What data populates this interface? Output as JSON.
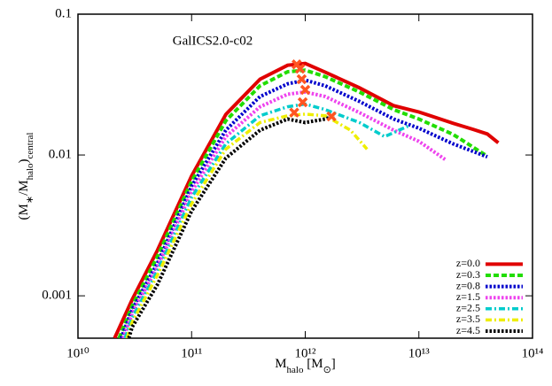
{
  "chart_data": {
    "type": "line",
    "annotation": "GalICS2.0-c02",
    "xlabel": [
      "M",
      "halo",
      " [M",
      "⊙",
      "]"
    ],
    "ylabel": [
      "(M",
      "∗",
      "/M",
      "halo",
      ")",
      "central"
    ],
    "xlog": true,
    "ylog": true,
    "legend": "bottom-right",
    "xlim": [
      10000000000.0,
      100000000000000.0
    ],
    "xticks": [
      {
        "value": 10000000000.0,
        "label": "10¹⁰"
      },
      {
        "value": 100000000000.0,
        "label": "10¹¹"
      },
      {
        "value": 1000000000000.0,
        "label": "10¹²"
      },
      {
        "value": 10000000000000.0,
        "label": "10¹³"
      },
      {
        "value": 100000000000000.0,
        "label": "10¹⁴"
      }
    ],
    "ylim": [
      0.0005,
      0.1
    ],
    "yticks": [
      0.001,
      0.01,
      0.1
    ],
    "peak_color": "#ff5522",
    "series": [
      {
        "name": "z=0.0",
        "color": "#e00000",
        "style": "solid",
        "x": [
          21000000000.0,
          30000000000.0,
          50000000000.0,
          100000000000.0,
          200000000000.0,
          400000000000.0,
          700000000000.0,
          1000000000000.0,
          1500000000000.0,
          3000000000000.0,
          6000000000000.0,
          10000000000000.0,
          20000000000000.0,
          30000000000000.0,
          40000000000000.0,
          50000000000000.0
        ],
        "values": [
          0.0005,
          0.00094,
          0.0021,
          0.0071,
          0.0194,
          0.0345,
          0.0434,
          0.0447,
          0.0387,
          0.03,
          0.0224,
          0.0202,
          0.0168,
          0.0152,
          0.0141,
          0.0122
        ],
        "peak_x": 840000000000.0,
        "peak_y": 0.044
      },
      {
        "name": "z=0.3",
        "color": "#22dd00",
        "style": "dashed",
        "x": [
          23000000000.0,
          30000000000.0,
          50000000000.0,
          100000000000.0,
          200000000000.0,
          400000000000.0,
          700000000000.0,
          1000000000000.0,
          1500000000000.0,
          3000000000000.0,
          6000000000000.0,
          10000000000000.0,
          20000000000000.0,
          40000000000000.0
        ],
        "values": [
          0.0005,
          0.00085,
          0.0019,
          0.0065,
          0.0175,
          0.031,
          0.039,
          0.04,
          0.036,
          0.028,
          0.021,
          0.018,
          0.014,
          0.0098
        ],
        "peak_x": 900000000000.0,
        "peak_y": 0.041
      },
      {
        "name": "z=0.8",
        "color": "#0000cc",
        "style": "dotted",
        "x": [
          24000000000.0,
          30000000000.0,
          50000000000.0,
          100000000000.0,
          200000000000.0,
          400000000000.0,
          700000000000.0,
          1000000000000.0,
          1500000000000.0,
          3000000000000.0,
          6000000000000.0,
          10000000000000.0,
          20000000000000.0,
          40000000000000.0
        ],
        "values": [
          0.0005,
          0.0008,
          0.0017,
          0.006,
          0.015,
          0.026,
          0.032,
          0.034,
          0.031,
          0.024,
          0.018,
          0.0155,
          0.012,
          0.0097
        ],
        "peak_x": 930000000000.0,
        "peak_y": 0.0345
      },
      {
        "name": "z=1.5",
        "color": "#ee44ee",
        "style": "dotted",
        "x": [
          25000000000.0,
          30000000000.0,
          50000000000.0,
          100000000000.0,
          200000000000.0,
          400000000000.0,
          700000000000.0,
          1000000000000.0,
          1500000000000.0,
          3000000000000.0,
          6000000000000.0,
          10000000000000.0,
          17000000000000.0
        ],
        "values": [
          0.0005,
          0.00075,
          0.0016,
          0.0055,
          0.0135,
          0.022,
          0.027,
          0.028,
          0.026,
          0.02,
          0.015,
          0.0125,
          0.0093
        ],
        "peak_x": 1000000000000.0,
        "peak_y": 0.029
      },
      {
        "name": "z=2.5",
        "color": "#00cccc",
        "style": "dashdot",
        "x": [
          26000000000.0,
          30000000000.0,
          50000000000.0,
          100000000000.0,
          200000000000.0,
          400000000000.0,
          700000000000.0,
          1000000000000.0,
          1500000000000.0,
          3000000000000.0,
          5000000000000.0,
          8000000000000.0
        ],
        "values": [
          0.0005,
          0.0007,
          0.0015,
          0.005,
          0.012,
          0.019,
          0.022,
          0.023,
          0.021,
          0.017,
          0.0135,
          0.016
        ],
        "peak_x": 950000000000.0,
        "peak_y": 0.0237
      },
      {
        "name": "z=3.5",
        "color": "#eeee00",
        "style": "dashdot",
        "x": [
          27000000000.0,
          30000000000.0,
          50000000000.0,
          100000000000.0,
          200000000000.0,
          400000000000.0,
          700000000000.0,
          1000000000000.0,
          1500000000000.0,
          2500000000000.0,
          3500000000000.0
        ],
        "values": [
          0.0005,
          0.00065,
          0.0014,
          0.0045,
          0.011,
          0.017,
          0.019,
          0.0195,
          0.019,
          0.015,
          0.011
        ],
        "peak_x": 800000000000.0,
        "peak_y": 0.02
      },
      {
        "name": "z=4.5",
        "color": "#000000",
        "style": "dotted",
        "x": [
          28000000000.0,
          30000000000.0,
          50000000000.0,
          100000000000.0,
          200000000000.0,
          400000000000.0,
          700000000000.0,
          1000000000000.0,
          1500000000000.0,
          1800000000000.0
        ],
        "values": [
          0.0005,
          0.0006,
          0.0012,
          0.004,
          0.0095,
          0.015,
          0.018,
          0.017,
          0.018,
          0.019
        ],
        "peak_x": 1700000000000.0,
        "peak_y": 0.0188
      }
    ]
  }
}
